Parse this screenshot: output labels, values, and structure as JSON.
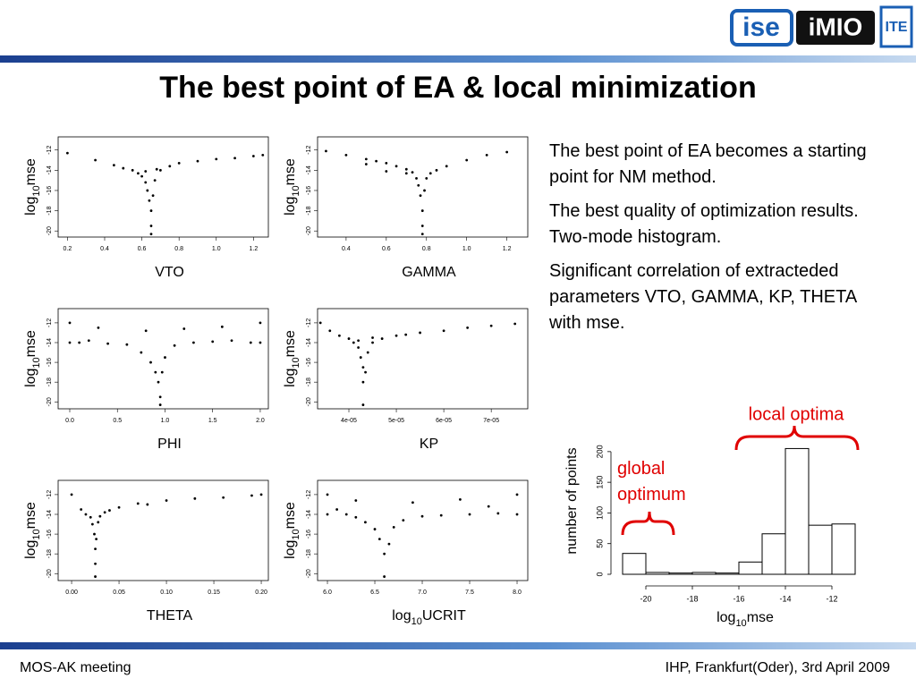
{
  "header": {
    "title": "The best point of EA & local minimization",
    "logos": [
      "ise",
      "iMIO",
      "ITE"
    ]
  },
  "paragraphs": [
    "The best point of EA becomes a starting point for NM method.",
    "The best quality of optimization results. Two-mode histogram.",
    "Significant correlation of extracteded parameters VTO, GAMMA, KP, THETA with mse."
  ],
  "footer": {
    "left": "MOS-AK meeting",
    "right": "IHP, Frankfurt(Oder), 3rd April 2009"
  },
  "chart_data": [
    {
      "type": "scatter",
      "x_label": "VTO",
      "y_label": [
        "log",
        "10",
        "mse"
      ],
      "x": [
        0.2,
        0.35,
        0.45,
        0.5,
        0.55,
        0.58,
        0.6,
        0.62,
        0.63,
        0.64,
        0.65,
        0.65,
        0.65,
        0.66,
        0.67,
        0.7,
        0.75,
        0.8,
        0.9,
        1.0,
        1.1,
        1.2,
        1.25,
        0.62,
        0.68
      ],
      "y": [
        -12.3,
        -13.0,
        -13.5,
        -13.8,
        -14.0,
        -14.3,
        -14.6,
        -15.2,
        -16,
        -17,
        -18,
        -19.5,
        -20.3,
        -16.5,
        -15,
        -14,
        -13.6,
        -13.3,
        -13.1,
        -12.9,
        -12.8,
        -12.6,
        -12.5,
        -14.1,
        -13.9
      ],
      "xlim": [
        0.15,
        1.28
      ],
      "ylim": [
        -20.6,
        -10.7
      ],
      "xticks": [
        0.2,
        0.4,
        0.6,
        0.8,
        {
          "value": 1.0,
          "label": "1.0"
        },
        1.2
      ],
      "yticks": [
        -12,
        -14,
        -16,
        -18,
        -20
      ]
    },
    {
      "type": "scatter",
      "x_label": "GAMMA",
      "y_label": [
        "log",
        "10",
        "mse"
      ],
      "x": [
        0.3,
        0.4,
        0.5,
        0.55,
        0.6,
        0.65,
        0.7,
        0.73,
        0.75,
        0.76,
        0.77,
        0.78,
        0.78,
        0.78,
        0.79,
        0.8,
        0.82,
        0.85,
        0.9,
        1.0,
        1.1,
        1.2,
        0.6,
        0.7,
        0.5
      ],
      "y": [
        -12.1,
        -12.5,
        -12.9,
        -13.1,
        -13.3,
        -13.6,
        -13.9,
        -14.2,
        -14.8,
        -15.5,
        -16.5,
        -18,
        -19.5,
        -20.3,
        -16,
        -14.8,
        -14.3,
        -14,
        -13.6,
        -13.0,
        -12.5,
        -12.2,
        -14.1,
        -14.3,
        -13.4
      ],
      "xlim": [
        0.258,
        1.304
      ],
      "ylim": [
        -20.6,
        -10.7
      ],
      "xticks": [
        0.4,
        0.6,
        0.8,
        {
          "value": 1.0,
          "label": "1.0"
        },
        1.2
      ],
      "yticks": [
        -12,
        -14,
        -16,
        -18,
        -20
      ]
    },
    {
      "type": "scatter",
      "x_label": "PHI",
      "y_label": [
        "log",
        "10",
        "mse"
      ],
      "x": [
        0.0,
        0.0,
        0.1,
        0.2,
        0.4,
        0.6,
        0.75,
        0.85,
        0.9,
        0.93,
        0.95,
        0.95,
        0.97,
        1.0,
        1.1,
        1.3,
        1.5,
        1.7,
        1.9,
        2.0,
        2.0,
        0.3,
        0.8,
        1.2,
        1.6
      ],
      "y": [
        -12,
        -14,
        -14,
        -13.8,
        -14.1,
        -14.2,
        -15,
        -16,
        -17,
        -18,
        -19.5,
        -20.3,
        -17,
        -15.5,
        -14.3,
        -14,
        -13.9,
        -13.8,
        -14,
        -12,
        -14,
        -12.5,
        -12.8,
        -12.6,
        -12.4
      ],
      "xlim": [
        -0.122,
        2.085
      ],
      "ylim": [
        -20.7,
        -10.56
      ],
      "xticks": [
        {
          "value": 0,
          "label": "0.0"
        },
        0.5,
        {
          "value": 1,
          "label": "1.0"
        },
        1.5,
        {
          "value": 2,
          "label": "2.0"
        }
      ],
      "yticks": [
        -12,
        -14,
        -16,
        -18,
        -20
      ]
    },
    {
      "type": "scatter",
      "x_label": "KP",
      "y_label": [
        "log",
        "10",
        "mse"
      ],
      "x": [
        3.4e-05,
        3.6e-05,
        3.8e-05,
        4e-05,
        4.1e-05,
        4.2e-05,
        4.25e-05,
        4.3e-05,
        4.3e-05,
        4.3e-05,
        4.35e-05,
        4.4e-05,
        4.5e-05,
        4.7e-05,
        5e-05,
        5.5e-05,
        6e-05,
        6.5e-05,
        7e-05,
        7.5e-05,
        4.2e-05,
        4.5e-05,
        5.2e-05
      ],
      "y": [
        -12,
        -12.8,
        -13.3,
        -13.6,
        -14,
        -14.5,
        -15.5,
        -16.5,
        -18,
        -20.3,
        -17,
        -15,
        -14,
        -13.6,
        -13.3,
        -13.0,
        -12.8,
        -12.5,
        -12.3,
        -12.1,
        -13.8,
        -13.5,
        -13.2
      ],
      "xlim": [
        3.34e-05,
        7.77e-05
      ],
      "ylim": [
        -20.7,
        -10.56
      ],
      "xticks": [
        {
          "value": 4e-05,
          "label": "4e-05"
        },
        {
          "value": 5e-05,
          "label": "5e-05"
        },
        {
          "value": 6e-05,
          "label": "6e-05"
        },
        {
          "value": 7e-05,
          "label": "7e-05"
        }
      ],
      "yticks": [
        -12,
        -14,
        -16,
        -18,
        -20
      ]
    },
    {
      "type": "scatter",
      "x_label": "THETA",
      "y_label": [
        "log",
        "10",
        "mse"
      ],
      "x": [
        0.0,
        0.01,
        0.015,
        0.02,
        0.022,
        0.024,
        0.025,
        0.025,
        0.025,
        0.026,
        0.028,
        0.03,
        0.035,
        0.05,
        0.07,
        0.1,
        0.13,
        0.16,
        0.19,
        0.2,
        0.04,
        0.08
      ],
      "y": [
        -12,
        -13.5,
        -14,
        -14.3,
        -15,
        -16,
        -17.5,
        -19,
        -20.3,
        -16.5,
        -14.8,
        -14.2,
        -13.8,
        -13.3,
        -12.9,
        -12.6,
        -12.4,
        -12.3,
        -12.1,
        -12.0,
        -13.6,
        -13.0
      ],
      "xlim": [
        -0.0142,
        0.2075
      ],
      "ylim": [
        -20.7,
        -10.56
      ],
      "xticks": [
        {
          "value": 0,
          "label": "0.00"
        },
        0.05,
        {
          "value": 0.1,
          "label": "0.10"
        },
        0.15,
        {
          "value": 0.2,
          "label": "0.20"
        }
      ],
      "yticks": [
        -12,
        -14,
        -16,
        -18,
        -20
      ]
    },
    {
      "type": "scatter",
      "x_label": [
        "log",
        "10",
        "UCRIT"
      ],
      "y_label": [
        "log",
        "10",
        "mse"
      ],
      "x": [
        6.0,
        6.0,
        6.1,
        6.2,
        6.3,
        6.4,
        6.5,
        6.55,
        6.6,
        6.6,
        6.65,
        6.7,
        6.8,
        7.0,
        7.2,
        7.5,
        7.8,
        8.0,
        8.0,
        6.3,
        6.9,
        7.4,
        7.7
      ],
      "y": [
        -12,
        -14,
        -13.5,
        -14,
        -14.3,
        -14.8,
        -15.5,
        -16.5,
        -18,
        -20.3,
        -17,
        -15.3,
        -14.6,
        -14.2,
        -14.1,
        -14,
        -13.9,
        -12,
        -14,
        -12.6,
        -12.8,
        -12.5,
        -13.2
      ],
      "xlim": [
        5.896,
        8.113
      ],
      "ylim": [
        -20.7,
        -10.56
      ],
      "xticks": [
        {
          "value": 6,
          "label": "6.0"
        },
        6.5,
        {
          "value": 7,
          "label": "7.0"
        },
        7.5,
        {
          "value": 8,
          "label": "8.0"
        }
      ],
      "yticks": [
        -12,
        -14,
        -16,
        -18,
        -20
      ]
    },
    {
      "type": "histogram",
      "x_label": [
        "log",
        "10",
        "mse"
      ],
      "y_label": "number of points",
      "bins": [
        -21,
        -20,
        -19,
        -18,
        -17,
        -16,
        -15,
        -14,
        -13,
        -12,
        -11
      ],
      "counts": [
        34,
        3,
        2,
        3,
        2,
        20,
        66,
        205,
        80,
        82
      ],
      "xlim": [
        -21,
        -11
      ],
      "ylim": [
        0,
        210
      ],
      "xticks": [
        -20,
        -18,
        -16,
        -14,
        -12
      ],
      "yticks": [
        0,
        50,
        100,
        150,
        200
      ],
      "annotations": {
        "local": "local optima",
        "global": [
          "global",
          "optimum"
        ]
      }
    }
  ]
}
